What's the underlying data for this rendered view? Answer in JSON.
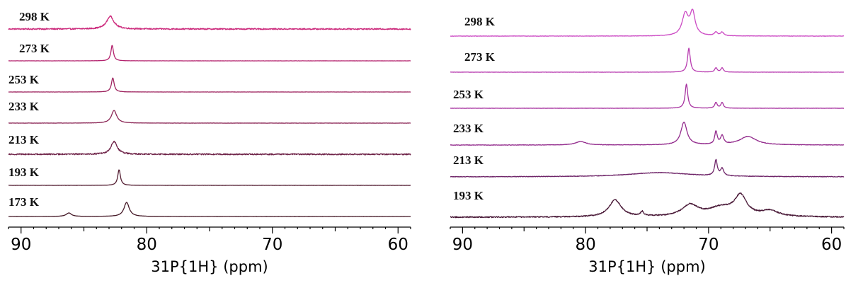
{
  "chart_data": [
    {
      "type": "line",
      "title": "",
      "xlabel": "31P{1H} (ppm)",
      "ylabel": "",
      "xlim": [
        91,
        59
      ],
      "ticks": [
        90,
        80,
        70,
        60
      ],
      "grid": false,
      "series": [
        {
          "name": "298 K",
          "color": "#cc2a7c",
          "noise": 0.9,
          "peaks": [
            {
              "x": 82.9,
              "h": 18,
              "w": 0.35
            }
          ]
        },
        {
          "name": "273 K",
          "color": "#b3226d",
          "noise": 0.1,
          "peaks": [
            {
              "x": 82.75,
              "h": 22,
              "w": 0.12
            }
          ]
        },
        {
          "name": "253 K",
          "color": "#9e245f",
          "noise": 0.1,
          "peaks": [
            {
              "x": 82.7,
              "h": 20,
              "w": 0.13
            }
          ]
        },
        {
          "name": "233 K",
          "color": "#8a2454",
          "noise": 0.15,
          "peaks": [
            {
              "x": 82.6,
              "h": 18,
              "w": 0.25
            }
          ]
        },
        {
          "name": "213 K",
          "color": "#6e2247",
          "noise": 0.9,
          "peaks": [
            {
              "x": 82.6,
              "h": 18,
              "w": 0.3
            }
          ]
        },
        {
          "name": "193 K",
          "color": "#521c30",
          "noise": 0.1,
          "peaks": [
            {
              "x": 82.2,
              "h": 22,
              "w": 0.13
            }
          ]
        },
        {
          "name": "173 K",
          "color": "#441826",
          "noise": 0.1,
          "peaks": [
            {
              "x": 86.2,
              "h": 5,
              "w": 0.25
            },
            {
              "x": 81.6,
              "h": 20,
              "w": 0.25
            }
          ]
        }
      ]
    },
    {
      "type": "line",
      "title": "",
      "xlabel": "31P{1H} (ppm)",
      "ylabel": "",
      "xlim": [
        91,
        59
      ],
      "ticks": [
        90,
        80,
        70,
        60
      ],
      "grid": false,
      "series": [
        {
          "name": "298 K",
          "color": "#cc4ac4",
          "noise": 0.25,
          "peaks": [
            {
              "x": 71.9,
              "h": 30,
              "w": 0.3
            },
            {
              "x": 71.3,
              "h": 32,
              "w": 0.25
            },
            {
              "x": 69.4,
              "h": 5,
              "w": 0.15
            },
            {
              "x": 68.9,
              "h": 5,
              "w": 0.15
            }
          ]
        },
        {
          "name": "273 K",
          "color": "#b83cb0",
          "noise": 0.12,
          "peaks": [
            {
              "x": 71.6,
              "h": 34,
              "w": 0.13
            },
            {
              "x": 69.4,
              "h": 6,
              "w": 0.12
            },
            {
              "x": 68.9,
              "h": 6,
              "w": 0.12
            }
          ]
        },
        {
          "name": "253 K",
          "color": "#a6309f",
          "noise": 0.12,
          "peaks": [
            {
              "x": 71.8,
              "h": 34,
              "w": 0.13
            },
            {
              "x": 69.4,
              "h": 8,
              "w": 0.12
            },
            {
              "x": 68.9,
              "h": 8,
              "w": 0.12
            }
          ]
        },
        {
          "name": "233 K",
          "color": "#922a8c",
          "noise": 0.3,
          "peaks": [
            {
              "x": 80.4,
              "h": 5,
              "w": 0.5
            },
            {
              "x": 72.0,
              "h": 32,
              "w": 0.3
            },
            {
              "x": 69.4,
              "h": 18,
              "w": 0.12
            },
            {
              "x": 68.9,
              "h": 12,
              "w": 0.15
            },
            {
              "x": 66.8,
              "h": 12,
              "w": 0.8
            }
          ]
        },
        {
          "name": "213 K",
          "color": "#6e2468",
          "noise": 0.4,
          "peaks": [
            {
              "x": 74.0,
              "h": 6,
              "w": 3
            },
            {
              "x": 69.4,
              "h": 22,
              "w": 0.13
            },
            {
              "x": 68.9,
              "h": 10,
              "w": 0.15
            }
          ]
        },
        {
          "name": "193 K",
          "color": "#4a1a38",
          "noise": 0.8,
          "peaks": [
            {
              "x": 77.6,
              "h": 24,
              "w": 0.6
            },
            {
              "x": 75.4,
              "h": 6,
              "w": 0.15
            },
            {
              "x": 71.5,
              "h": 16,
              "w": 0.8
            },
            {
              "x": 69.0,
              "h": 12,
              "w": 1.2
            },
            {
              "x": 67.4,
              "h": 28,
              "w": 0.6
            },
            {
              "x": 65.0,
              "h": 8,
              "w": 0.8
            }
          ]
        }
      ]
    }
  ]
}
